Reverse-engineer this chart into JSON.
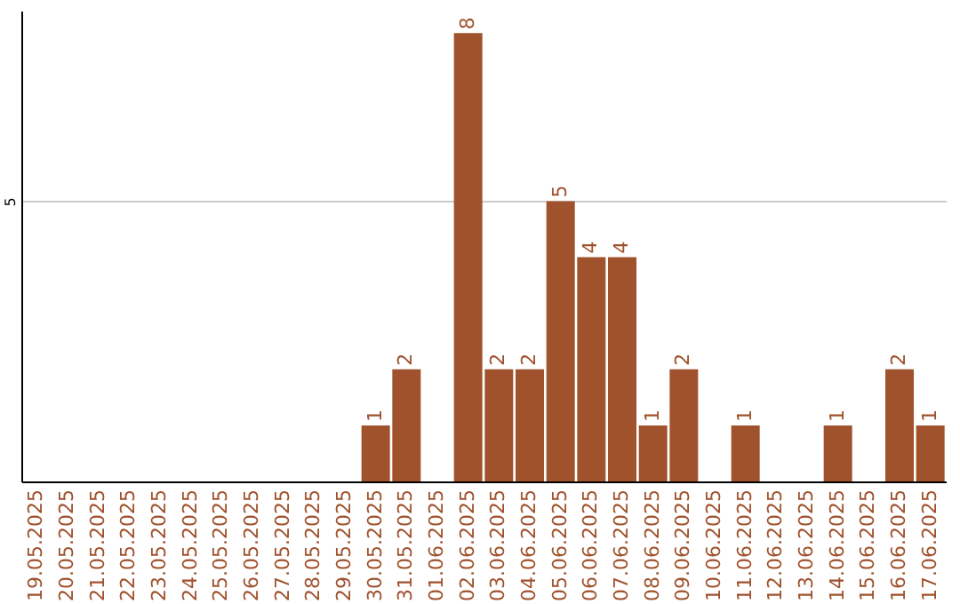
{
  "chart_data": {
    "type": "bar",
    "categories": [
      "19.05.2025",
      "20.05.2025",
      "21.05.2025",
      "22.05.2025",
      "23.05.2025",
      "24.05.2025",
      "25.05.2025",
      "26.05.2025",
      "27.05.2025",
      "28.05.2025",
      "29.05.2025",
      "30.05.2025",
      "31.05.2025",
      "01.06.2025",
      "02.06.2025",
      "03.06.2025",
      "04.06.2025",
      "05.06.2025",
      "06.06.2025",
      "07.06.2025",
      "08.06.2025",
      "09.06.2025",
      "10.06.2025",
      "11.06.2025",
      "12.06.2025",
      "13.06.2025",
      "14.06.2025",
      "15.06.2025",
      "16.06.2025",
      "17.06.2025"
    ],
    "values": [
      0,
      0,
      0,
      0,
      0,
      0,
      0,
      0,
      0,
      0,
      0,
      1,
      2,
      0,
      8,
      2,
      2,
      5,
      4,
      4,
      1,
      2,
      0,
      1,
      0,
      0,
      1,
      0,
      2,
      1
    ],
    "value_labels": [
      null,
      null,
      null,
      null,
      null,
      null,
      null,
      null,
      null,
      null,
      null,
      "1",
      "2",
      null,
      "8",
      "2",
      "2",
      "5",
      "4",
      "4",
      "1",
      "2",
      null,
      "1",
      null,
      null,
      "1",
      null,
      "2",
      "1"
    ],
    "color": "#a0522d",
    "ylim": [
      0,
      8.4
    ],
    "yticks": [
      5
    ],
    "grid": "y"
  }
}
